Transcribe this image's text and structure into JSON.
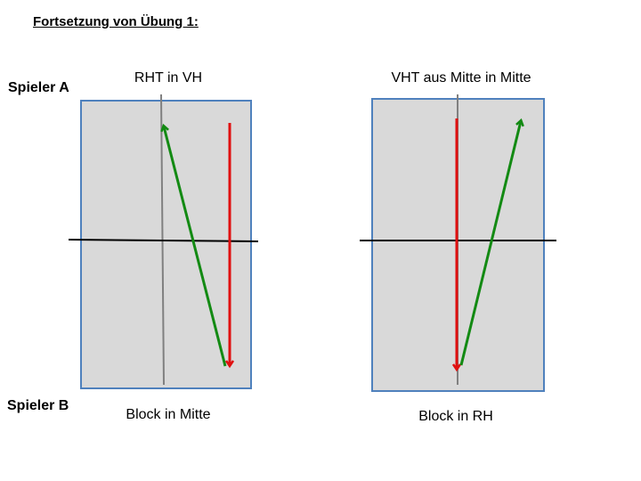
{
  "heading": "Fortsetzung von Übung 1:",
  "players": {
    "top": "Spieler A",
    "bottom": "Spieler B"
  },
  "diagrams": [
    {
      "title": "RHT in VH",
      "subtitle": "Block in Mitte"
    },
    {
      "title": "VHT aus Mitte in Mitte",
      "subtitle": "Block in RH"
    }
  ],
  "colors": {
    "table_fill": "#d9d9d9",
    "table_border": "#4f81bd",
    "net": "#000000",
    "center_line": "#808080",
    "serve_arrow": "#138a13",
    "return_arrow": "#e01010"
  }
}
